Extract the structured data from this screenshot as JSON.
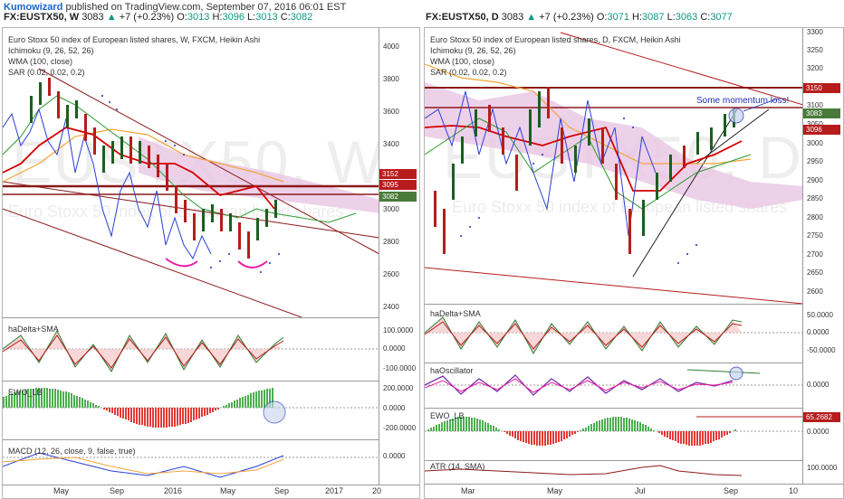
{
  "header": {
    "author": "Kumowizard",
    "published_text": "published on TradingView.com, September 07, 2016 06:01 EST"
  },
  "left": {
    "ticker_line": {
      "symbol": "FX:EUSTX50, W",
      "last": "3083",
      "change": "+7 (+0.23%)",
      "open_label": "O:",
      "open": "3013",
      "high_label": "H:",
      "high": "3096",
      "low_label": "L:",
      "low": "3013",
      "close_label": "C:",
      "close": "3082"
    },
    "studies": [
      "Euro Stoxx 50 index of European listed shares, W, FXCM, Heikin Ashi",
      "Ichimoku (9, 26, 52, 26)",
      "WMA (100, close)",
      "SAR (0.02, 0.02, 0.2)"
    ],
    "price_axis": [
      "4000",
      "3800",
      "3600",
      "3400",
      "3200",
      "3000",
      "2800",
      "2600",
      "2400"
    ],
    "price_tags": [
      {
        "value": "3152",
        "color": "#b71c1c"
      },
      {
        "value": "3095",
        "color": "#b71c1c"
      },
      {
        "value": "3082",
        "color": "#4a7a3a"
      }
    ],
    "sub1": {
      "label": "haDelta+SMA",
      "axis": [
        "100.0000",
        "0.0000",
        "-100.0000"
      ]
    },
    "sub2": {
      "label": "EWO_LB",
      "axis": [
        "200.0000",
        "0.0000",
        "-200.0000"
      ]
    },
    "sub3": {
      "label": "MACD (12, 26, close, 9, false, true)",
      "axis": [
        "0.0000"
      ]
    },
    "time_axis": [
      "May",
      "Sep",
      "2016",
      "May",
      "Sep",
      "2017",
      "20"
    ],
    "watermark": "EUSTX50, W",
    "watermark_sub": "Euro Stoxx 50 index of European listed shares"
  },
  "right": {
    "ticker_line": {
      "symbol": "FX:EUSTX50, D",
      "last": "3083",
      "change": "+7 (+0.23%)",
      "open_label": "O:",
      "open": "3071",
      "high_label": "H:",
      "high": "3087",
      "low_label": "L:",
      "low": "3063",
      "close_label": "C:",
      "close": "3077"
    },
    "studies": [
      "Euro Stoxx 50 index of European listed shares, D, FXCM, Heikin Ashi",
      "Ichimoku (9, 26, 52, 26)",
      "WMA (100, close)",
      "SAR (0.02, 0.02, 0.2)"
    ],
    "annotation": "Some momentum loss!",
    "price_axis": [
      "3300",
      "3250",
      "3200",
      "3150",
      "3100",
      "3050",
      "3000",
      "2950",
      "2900",
      "2850",
      "2800",
      "2750",
      "2700",
      "2650",
      "2600"
    ],
    "price_tags": [
      {
        "value": "3150",
        "color": "#b71c1c"
      },
      {
        "value": "3083",
        "color": "#4a7a3a"
      },
      {
        "value": "3096",
        "color": "#b71c1c"
      }
    ],
    "sub1": {
      "label": "haDelta+SMA",
      "axis": [
        "50.0000",
        "0.0000",
        "-50.0000"
      ]
    },
    "sub2": {
      "label": "haOscillator",
      "axis": [
        "0.0000"
      ]
    },
    "sub3": {
      "label": "EWO_LB",
      "axis": [
        "65.2682",
        "0.0000"
      ]
    },
    "sub4": {
      "label": "ATR (14, SMA)",
      "axis": [
        "100.0000"
      ]
    },
    "time_axis": [
      "Mar",
      "May",
      "Jul",
      "Sep",
      "10"
    ],
    "watermark": "EUSTX50, D",
    "watermark_sub": "Euro Stoxx 50 index of European listed shares"
  },
  "colors": {
    "up": "#089981",
    "candle_green": "#1b5e20",
    "candle_red": "#b71c1c",
    "resistance": "#8b1a1a",
    "cloud": "#e8c6e4",
    "sma_red": "#d50000",
    "wma_orange": "#f2a43a",
    "lagging_blue": "#2a3fd6",
    "ichimoku_green": "#2e9b2e"
  }
}
